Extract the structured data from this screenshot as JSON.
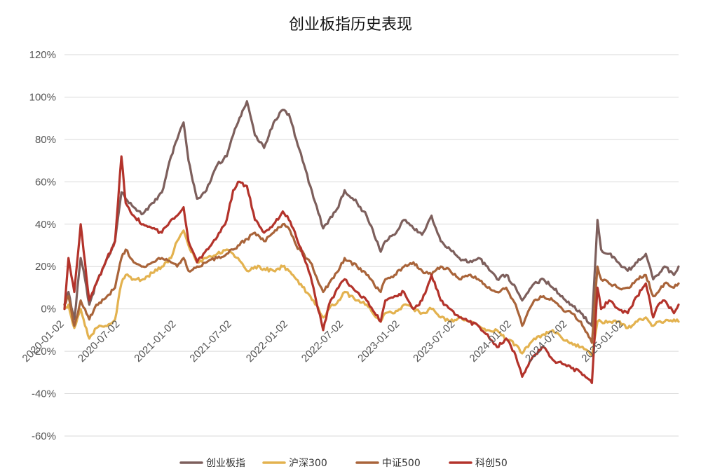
{
  "chart_data": {
    "type": "line",
    "title": "创业板指历史表现",
    "xlabel": "",
    "ylabel": "",
    "ylim": [
      -60,
      120
    ],
    "y_ticks": [
      "-60%",
      "-40%",
      "-20%",
      "0%",
      "20%",
      "40%",
      "60%",
      "80%",
      "100%",
      "120%"
    ],
    "y_tick_values": [
      -60,
      -40,
      -20,
      0,
      20,
      40,
      60,
      80,
      100,
      120
    ],
    "x_range": [
      "2020-01-02",
      "2025-06-30"
    ],
    "x_ticks": [
      "2020-01-02",
      "2020-07-02",
      "2021-01-02",
      "2021-07-02",
      "2022-01-02",
      "2022-07-02",
      "2023-01-02",
      "2023-07-02",
      "2024-01-02",
      "2024-07-02",
      "2025-01-02"
    ],
    "grid": true,
    "legend_position": "bottom",
    "series": [
      {
        "name": "创业板指",
        "color": "#7d5f5c",
        "x": [
          "2020-01-02",
          "2020-01-15",
          "2020-02-03",
          "2020-02-24",
          "2020-03-09",
          "2020-03-23",
          "2020-04-15",
          "2020-05-15",
          "2020-06-15",
          "2020-07-06",
          "2020-07-20",
          "2020-08-15",
          "2020-09-15",
          "2020-10-15",
          "2020-11-15",
          "2020-12-15",
          "2021-01-04",
          "2021-01-25",
          "2021-02-10",
          "2021-03-10",
          "2021-04-10",
          "2021-05-15",
          "2021-06-15",
          "2021-07-06",
          "2021-07-22",
          "2021-08-20",
          "2021-09-15",
          "2021-10-15",
          "2021-11-15",
          "2021-12-15",
          "2022-01-04",
          "2022-01-28",
          "2022-03-15",
          "2022-04-26",
          "2022-05-15",
          "2022-06-15",
          "2022-07-05",
          "2022-08-15",
          "2022-09-15",
          "2022-10-31",
          "2022-11-15",
          "2022-12-15",
          "2023-01-15",
          "2023-02-15",
          "2023-03-15",
          "2023-04-15",
          "2023-05-15",
          "2023-06-15",
          "2023-07-15",
          "2023-08-15",
          "2023-09-15",
          "2023-10-15",
          "2023-11-15",
          "2023-12-15",
          "2024-01-15",
          "2024-02-05",
          "2024-03-15",
          "2024-04-15",
          "2024-05-15",
          "2024-06-15",
          "2024-07-15",
          "2024-08-15",
          "2024-09-20",
          "2024-10-08",
          "2024-10-20",
          "2024-11-15",
          "2024-12-15",
          "2025-01-15",
          "2025-02-15",
          "2025-03-15",
          "2025-04-08",
          "2025-04-25",
          "2025-05-15",
          "2025-06-15",
          "2025-06-30"
        ],
        "values": [
          2,
          8,
          -5,
          24,
          14,
          2,
          12,
          22,
          32,
          55,
          52,
          48,
          45,
          50,
          55,
          72,
          80,
          88,
          70,
          52,
          56,
          68,
          72,
          82,
          88,
          98,
          82,
          76,
          88,
          94,
          92,
          80,
          58,
          38,
          42,
          48,
          56,
          50,
          44,
          27,
          32,
          35,
          42,
          38,
          35,
          44,
          32,
          28,
          24,
          22,
          24,
          20,
          14,
          16,
          10,
          4,
          12,
          14,
          10,
          6,
          2,
          -2,
          -8,
          42,
          28,
          26,
          22,
          18,
          22,
          26,
          14,
          16,
          20,
          16,
          20
        ]
      },
      {
        "name": "沪深300",
        "color": "#e3b24f",
        "x": [
          "2020-01-02",
          "2020-01-15",
          "2020-02-03",
          "2020-02-24",
          "2020-03-09",
          "2020-03-23",
          "2020-04-15",
          "2020-05-15",
          "2020-06-15",
          "2020-07-06",
          "2020-07-20",
          "2020-08-15",
          "2020-09-15",
          "2020-10-15",
          "2020-11-15",
          "2020-12-15",
          "2021-01-04",
          "2021-01-25",
          "2021-02-10",
          "2021-03-10",
          "2021-04-10",
          "2021-05-15",
          "2021-06-15",
          "2021-07-06",
          "2021-07-22",
          "2021-08-20",
          "2021-09-15",
          "2021-10-15",
          "2021-11-15",
          "2021-12-15",
          "2022-01-04",
          "2022-01-28",
          "2022-03-15",
          "2022-04-26",
          "2022-05-15",
          "2022-06-15",
          "2022-07-05",
          "2022-08-15",
          "2022-09-15",
          "2022-10-31",
          "2022-11-15",
          "2022-12-15",
          "2023-01-15",
          "2023-02-15",
          "2023-03-15",
          "2023-04-15",
          "2023-05-15",
          "2023-06-15",
          "2023-07-15",
          "2023-08-15",
          "2023-09-15",
          "2023-10-15",
          "2023-11-15",
          "2023-12-15",
          "2024-01-15",
          "2024-02-05",
          "2024-03-15",
          "2024-04-15",
          "2024-05-15",
          "2024-06-15",
          "2024-07-15",
          "2024-08-15",
          "2024-09-20",
          "2024-10-08",
          "2024-10-20",
          "2024-11-15",
          "2024-12-15",
          "2025-01-15",
          "2025-02-15",
          "2025-03-15",
          "2025-04-08",
          "2025-04-25",
          "2025-05-15",
          "2025-06-15",
          "2025-06-30"
        ],
        "values": [
          0,
          2,
          -9,
          0,
          -8,
          -14,
          -9,
          -8,
          -5,
          12,
          16,
          14,
          14,
          17,
          20,
          24,
          32,
          37,
          30,
          22,
          24,
          26,
          28,
          26,
          24,
          18,
          20,
          19,
          18,
          20,
          18,
          14,
          6,
          -4,
          0,
          4,
          8,
          4,
          2,
          -6,
          -2,
          -2,
          2,
          0,
          -2,
          0,
          -4,
          -6,
          -4,
          -6,
          -8,
          -10,
          -10,
          -14,
          -17,
          -21,
          -14,
          -12,
          -10,
          -14,
          -16,
          -18,
          -22,
          -6,
          -6,
          -6,
          -6,
          -9,
          -6,
          -4,
          -8,
          -6,
          -6,
          -5,
          -6
        ]
      },
      {
        "name": "中证500",
        "color": "#a9643a",
        "x": [
          "2020-01-02",
          "2020-01-15",
          "2020-02-03",
          "2020-02-24",
          "2020-03-09",
          "2020-03-23",
          "2020-04-15",
          "2020-05-15",
          "2020-06-15",
          "2020-07-06",
          "2020-07-20",
          "2020-08-15",
          "2020-09-15",
          "2020-10-15",
          "2020-11-15",
          "2020-12-15",
          "2021-01-04",
          "2021-01-25",
          "2021-02-10",
          "2021-03-10",
          "2021-04-10",
          "2021-05-15",
          "2021-06-15",
          "2021-07-06",
          "2021-07-22",
          "2021-08-20",
          "2021-09-15",
          "2021-10-15",
          "2021-11-15",
          "2021-12-15",
          "2022-01-04",
          "2022-01-28",
          "2022-03-15",
          "2022-04-26",
          "2022-05-15",
          "2022-06-15",
          "2022-07-05",
          "2022-08-15",
          "2022-09-15",
          "2022-10-31",
          "2022-11-15",
          "2022-12-15",
          "2023-01-15",
          "2023-02-15",
          "2023-03-15",
          "2023-04-15",
          "2023-05-15",
          "2023-06-15",
          "2023-07-15",
          "2023-08-15",
          "2023-09-15",
          "2023-10-15",
          "2023-11-15",
          "2023-12-15",
          "2024-01-15",
          "2024-02-05",
          "2024-03-15",
          "2024-04-15",
          "2024-05-15",
          "2024-06-15",
          "2024-07-15",
          "2024-08-15",
          "2024-09-20",
          "2024-10-08",
          "2024-10-20",
          "2024-11-15",
          "2024-12-15",
          "2025-01-15",
          "2025-02-15",
          "2025-03-15",
          "2025-04-08",
          "2025-04-25",
          "2025-05-15",
          "2025-06-15",
          "2025-06-30"
        ],
        "values": [
          2,
          6,
          -8,
          4,
          0,
          -5,
          2,
          5,
          10,
          24,
          28,
          22,
          20,
          22,
          24,
          22,
          20,
          24,
          18,
          20,
          22,
          24,
          26,
          28,
          30,
          33,
          36,
          32,
          36,
          40,
          38,
          30,
          22,
          8,
          12,
          18,
          24,
          20,
          16,
          8,
          14,
          16,
          20,
          22,
          18,
          16,
          20,
          18,
          14,
          16,
          14,
          10,
          8,
          10,
          2,
          -8,
          4,
          6,
          4,
          0,
          -2,
          -6,
          -16,
          20,
          14,
          12,
          10,
          10,
          14,
          16,
          6,
          8,
          12,
          10,
          12
        ]
      },
      {
        "name": "科创50",
        "color": "#b3332b",
        "x": [
          "2020-01-02",
          "2020-01-15",
          "2020-02-03",
          "2020-02-24",
          "2020-03-09",
          "2020-03-23",
          "2020-04-15",
          "2020-05-15",
          "2020-06-15",
          "2020-07-06",
          "2020-07-20",
          "2020-08-15",
          "2020-09-15",
          "2020-10-15",
          "2020-11-15",
          "2020-12-15",
          "2021-01-04",
          "2021-01-25",
          "2021-02-10",
          "2021-03-10",
          "2021-04-10",
          "2021-05-15",
          "2021-06-15",
          "2021-07-06",
          "2021-07-22",
          "2021-08-20",
          "2021-09-15",
          "2021-10-15",
          "2021-11-15",
          "2021-12-15",
          "2022-01-04",
          "2022-01-28",
          "2022-03-15",
          "2022-04-26",
          "2022-05-15",
          "2022-06-15",
          "2022-07-05",
          "2022-08-15",
          "2022-09-15",
          "2022-10-31",
          "2022-11-15",
          "2022-12-15",
          "2023-01-15",
          "2023-02-15",
          "2023-03-15",
          "2023-04-15",
          "2023-05-15",
          "2023-06-15",
          "2023-07-15",
          "2023-08-15",
          "2023-09-15",
          "2023-10-15",
          "2023-11-15",
          "2023-12-15",
          "2024-01-15",
          "2024-02-05",
          "2024-03-15",
          "2024-04-15",
          "2024-05-15",
          "2024-06-15",
          "2024-07-15",
          "2024-08-15",
          "2024-09-20",
          "2024-10-08",
          "2024-10-20",
          "2024-11-15",
          "2024-12-15",
          "2025-01-15",
          "2025-02-15",
          "2025-03-15",
          "2025-04-08",
          "2025-04-25",
          "2025-05-15",
          "2025-06-15",
          "2025-06-30"
        ],
        "values": [
          0,
          24,
          8,
          40,
          22,
          4,
          12,
          22,
          32,
          72,
          50,
          44,
          40,
          38,
          36,
          42,
          44,
          48,
          32,
          22,
          28,
          34,
          42,
          56,
          60,
          58,
          42,
          36,
          40,
          46,
          42,
          34,
          16,
          -10,
          2,
          10,
          14,
          8,
          4,
          -6,
          4,
          6,
          8,
          0,
          4,
          16,
          4,
          0,
          -4,
          -6,
          -8,
          -12,
          -18,
          -14,
          -22,
          -32,
          -22,
          -18,
          -24,
          -26,
          -28,
          -30,
          -35,
          10,
          0,
          4,
          0,
          -2,
          6,
          12,
          -4,
          2,
          4,
          -2,
          2
        ]
      }
    ]
  }
}
